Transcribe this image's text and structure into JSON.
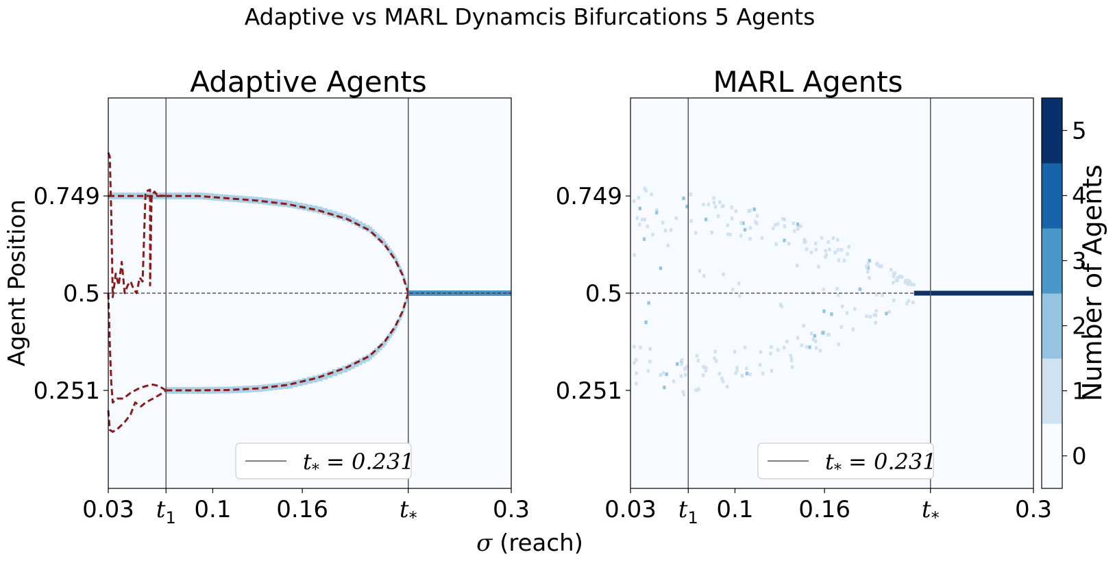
{
  "figure": {
    "suptitle": "Adaptive vs MARL Dynamcis Bifurcations  5 Agents",
    "xlabel_symbol": "σ",
    "xlabel_rest": " (reach)"
  },
  "chart_data": [
    {
      "type": "heatmap",
      "title": "Adaptive Agents",
      "xlabel": "σ (reach)",
      "ylabel": "Agent Position",
      "xlim": [
        0.03,
        0.3
      ],
      "ylim": [
        0,
        1
      ],
      "x_ticks": [
        {
          "value": 0.03,
          "label": "0.03"
        },
        {
          "value": 0.0687,
          "label": "t",
          "sub": "1"
        },
        {
          "value": 0.1,
          "label": "0.1"
        },
        {
          "value": 0.16,
          "label": "0.16"
        },
        {
          "value": 0.231,
          "label": "t",
          "sub": "*"
        },
        {
          "value": 0.3,
          "label": "0.3"
        }
      ],
      "y_ticks": [
        {
          "value": 0.251,
          "label": "0.251"
        },
        {
          "value": 0.5,
          "label": "0.5"
        },
        {
          "value": 0.749,
          "label": "0.749"
        }
      ],
      "vlines": [
        0.0687,
        0.231
      ],
      "hline": 0.5,
      "legend": {
        "label": "t",
        "sub": "*",
        "rest": " = 0.231",
        "location": "lower-center"
      },
      "mean_field_color": "#8b1a1a",
      "upper_branch": [
        [
          0.03,
          0.749
        ],
        [
          0.06,
          0.749
        ],
        [
          0.09,
          0.749
        ],
        [
          0.11,
          0.743
        ],
        [
          0.13,
          0.737
        ],
        [
          0.15,
          0.728
        ],
        [
          0.17,
          0.713
        ],
        [
          0.19,
          0.69
        ],
        [
          0.205,
          0.661
        ],
        [
          0.215,
          0.625
        ],
        [
          0.222,
          0.587
        ],
        [
          0.227,
          0.548
        ],
        [
          0.231,
          0.5
        ]
      ],
      "lower_branch": [
        [
          0.0687,
          0.251
        ],
        [
          0.09,
          0.251
        ],
        [
          0.11,
          0.252
        ],
        [
          0.13,
          0.256
        ],
        [
          0.15,
          0.265
        ],
        [
          0.17,
          0.283
        ],
        [
          0.19,
          0.31
        ],
        [
          0.205,
          0.339
        ],
        [
          0.215,
          0.375
        ],
        [
          0.222,
          0.413
        ],
        [
          0.227,
          0.452
        ],
        [
          0.231,
          0.5
        ]
      ],
      "center_branch": [
        [
          0.231,
          0.5
        ],
        [
          0.3,
          0.5
        ]
      ],
      "transients": [
        [
          [
            0.03,
            0.86
          ],
          [
            0.031,
            0.85
          ],
          [
            0.032,
            0.7
          ],
          [
            0.033,
            0.49
          ],
          [
            0.035,
            0.55
          ],
          [
            0.037,
            0.52
          ],
          [
            0.039,
            0.58
          ],
          [
            0.041,
            0.5
          ],
          [
            0.043,
            0.52
          ],
          [
            0.045,
            0.53
          ],
          [
            0.047,
            0.51
          ],
          [
            0.049,
            0.5
          ],
          [
            0.051,
            0.54
          ],
          [
            0.053,
            0.53
          ],
          [
            0.055,
            0.76
          ],
          [
            0.058,
            0.765
          ],
          [
            0.058,
            0.52
          ],
          [
            0.059,
            0.75
          ],
          [
            0.061,
            0.76
          ],
          [
            0.063,
            0.75
          ],
          [
            0.0687,
            0.749
          ]
        ],
        [
          [
            0.03,
            0.5
          ],
          [
            0.031,
            0.37
          ],
          [
            0.032,
            0.27
          ],
          [
            0.033,
            0.22
          ],
          [
            0.036,
            0.23
          ],
          [
            0.04,
            0.23
          ],
          [
            0.045,
            0.245
          ],
          [
            0.05,
            0.255
          ],
          [
            0.055,
            0.262
          ],
          [
            0.06,
            0.266
          ],
          [
            0.064,
            0.262
          ],
          [
            0.0687,
            0.251
          ]
        ],
        [
          [
            0.03,
            0.2
          ],
          [
            0.031,
            0.15
          ],
          [
            0.033,
            0.145
          ],
          [
            0.037,
            0.155
          ],
          [
            0.041,
            0.17
          ],
          [
            0.045,
            0.19
          ],
          [
            0.048,
            0.22
          ],
          [
            0.05,
            0.215
          ],
          [
            0.052,
            0.21
          ],
          [
            0.055,
            0.22
          ],
          [
            0.06,
            0.23
          ],
          [
            0.065,
            0.241
          ],
          [
            0.0687,
            0.251
          ]
        ]
      ]
    },
    {
      "type": "heatmap",
      "title": "MARL Agents",
      "xlabel": "σ (reach)",
      "xlim": [
        0.03,
        0.3
      ],
      "ylim": [
        0,
        1
      ],
      "x_ticks": [
        {
          "value": 0.03,
          "label": "0.03"
        },
        {
          "value": 0.0687,
          "label": "t",
          "sub": "1"
        },
        {
          "value": 0.1,
          "label": "0.1"
        },
        {
          "value": 0.16,
          "label": "0.16"
        },
        {
          "value": 0.231,
          "label": "t",
          "sub": "*"
        },
        {
          "value": 0.3,
          "label": "0.3"
        }
      ],
      "y_ticks": [
        {
          "value": 0.251,
          "label": "0.251"
        },
        {
          "value": 0.5,
          "label": "0.5"
        },
        {
          "value": 0.749,
          "label": "0.749"
        }
      ],
      "vlines": [
        0.0687,
        0.231
      ],
      "hline": 0.5,
      "legend": {
        "label": "t",
        "sub": "*",
        "rest": " = 0.231",
        "location": "lower-center"
      },
      "converged_after": 0.22,
      "converged_value": 0.5,
      "converged_count": 5,
      "scatter_extent": [
        0.03,
        0.22
      ]
    }
  ],
  "colorbar": {
    "label": "Number of Agents",
    "ticks": [
      "0",
      "1",
      "2",
      "3",
      "4",
      "5"
    ],
    "colors": [
      "#f7fbff",
      "#d0e1f2",
      "#94c4df",
      "#4a98c9",
      "#1764ab",
      "#08306b"
    ]
  }
}
